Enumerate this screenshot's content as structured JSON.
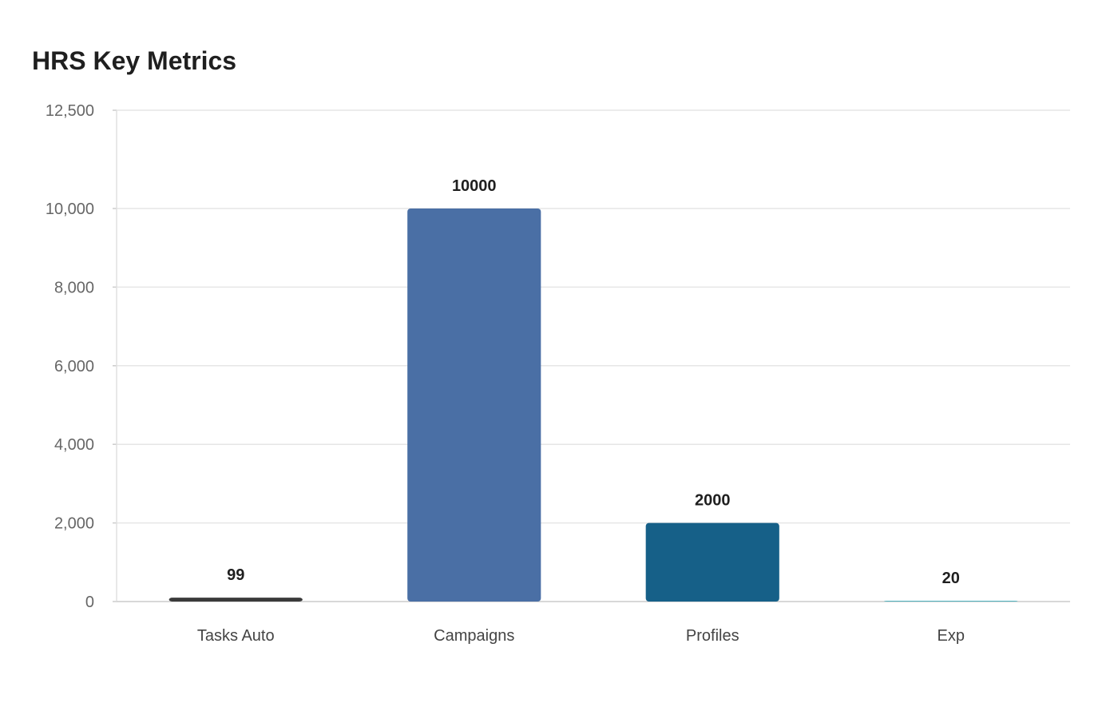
{
  "chart_data": {
    "type": "bar",
    "title": "HRS Key Metrics",
    "xlabel": "",
    "ylabel": "",
    "categories": [
      "Tasks Auto",
      "Campaigns",
      "Profiles",
      "Exp"
    ],
    "values": [
      99,
      10000,
      2000,
      20
    ],
    "data_labels": [
      "99",
      "10000",
      "2000",
      "20"
    ],
    "colors": [
      "#3a3a3a",
      "#4a6fa5",
      "#166088",
      "#4fb3bf"
    ],
    "ylim": [
      0,
      12500
    ],
    "yticks": [
      0,
      2000,
      4000,
      6000,
      8000,
      10000,
      12500
    ],
    "ytick_labels": [
      "0",
      "2,000",
      "4,000",
      "6,000",
      "8,000",
      "10,000",
      "12,500"
    ],
    "grid": true,
    "legend": "none"
  }
}
